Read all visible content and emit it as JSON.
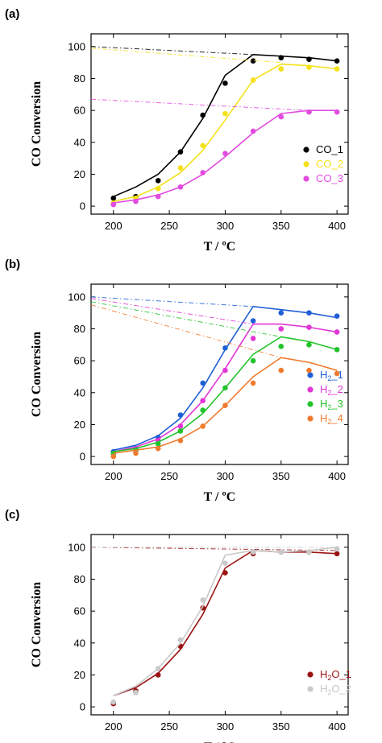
{
  "chart_data": [
    {
      "type": "line",
      "panel_label": "(a)",
      "xlabel": "T / ºC",
      "ylabel": "CO Conversion",
      "xlim": [
        180,
        410
      ],
      "ylim": [
        -5,
        108
      ],
      "xticks": [
        200,
        250,
        300,
        350,
        400
      ],
      "yticks": [
        0,
        20,
        40,
        60,
        80,
        100
      ],
      "legend_position": "bottom-right",
      "series": [
        {
          "name": "CO_1",
          "label_main": "CO_1",
          "label_sub": "",
          "label_tail": "",
          "color": "#000000",
          "x": [
            200,
            220,
            240,
            260,
            280,
            300,
            325,
            350,
            375,
            400
          ],
          "points": [
            5,
            6,
            16,
            34,
            57,
            77,
            91,
            93,
            92,
            91
          ],
          "fit": [
            6,
            12,
            20,
            34,
            55,
            82,
            95,
            94,
            93,
            91
          ],
          "equilibrium": {
            "x": [
              180,
              325
            ],
            "y": [
              100,
              95
            ]
          }
        },
        {
          "name": "CO_2",
          "label_main": "CO_2",
          "label_sub": "",
          "label_tail": "",
          "color": "#f4e11a",
          "x": [
            200,
            220,
            240,
            260,
            280,
            300,
            325,
            350,
            375,
            400
          ],
          "points": [
            2,
            5,
            11,
            24,
            38,
            58,
            79,
            86,
            87,
            86
          ],
          "fit": [
            3,
            6,
            12,
            21,
            35,
            54,
            79,
            89,
            88,
            86
          ],
          "equilibrium": {
            "x": [
              180,
              350
            ],
            "y": [
              99,
              90
            ]
          }
        },
        {
          "name": "CO_3",
          "label_main": "CO_3",
          "label_sub": "",
          "label_tail": "",
          "color": "#e24ae0",
          "x": [
            200,
            220,
            240,
            260,
            280,
            300,
            325,
            350,
            375,
            400
          ],
          "points": [
            1,
            3,
            6,
            12,
            21,
            33,
            47,
            56,
            59,
            59
          ],
          "fit": [
            2,
            4,
            7,
            12,
            20,
            31,
            46,
            58,
            60,
            60
          ],
          "equilibrium": {
            "x": [
              180,
              375
            ],
            "y": [
              67,
              60
            ]
          }
        }
      ]
    },
    {
      "type": "line",
      "panel_label": "(b)",
      "xlabel": "T / ºC",
      "ylabel": "CO Conversion",
      "xlim": [
        180,
        410
      ],
      "ylim": [
        -5,
        108
      ],
      "xticks": [
        200,
        250,
        300,
        350,
        400
      ],
      "yticks": [
        0,
        20,
        40,
        60,
        80,
        100
      ],
      "legend_position": "right",
      "series": [
        {
          "name": "H2_1",
          "label_main": "H",
          "label_sub": "2",
          "label_tail": "_1",
          "color": "#1f5fd6",
          "x": [
            200,
            220,
            240,
            260,
            280,
            300,
            325,
            350,
            375,
            400
          ],
          "points": [
            3,
            5,
            12,
            26,
            46,
            68,
            85,
            90,
            90,
            88
          ],
          "fit": [
            4,
            7,
            13,
            24,
            43,
            67,
            94,
            92,
            90,
            87
          ],
          "equilibrium": {
            "x": [
              180,
              325
            ],
            "y": [
              100,
              94
            ]
          }
        },
        {
          "name": "H2_2",
          "label_main": "H",
          "label_sub": "2",
          "label_tail": "_2",
          "color": "#e236d6",
          "x": [
            200,
            220,
            240,
            260,
            280,
            300,
            325,
            350,
            375,
            400
          ],
          "points": [
            2,
            4,
            10,
            19,
            35,
            54,
            74,
            80,
            81,
            78
          ],
          "fit": [
            3,
            6,
            11,
            20,
            35,
            55,
            83,
            83,
            81,
            78
          ],
          "equilibrium": {
            "x": [
              180,
              325
            ],
            "y": [
              99,
              83
            ]
          }
        },
        {
          "name": "H2_3",
          "label_main": "H",
          "label_sub": "2",
          "label_tail": "_3",
          "color": "#22c32a",
          "x": [
            200,
            220,
            240,
            260,
            280,
            300,
            325,
            350,
            375,
            400
          ],
          "points": [
            2,
            4,
            8,
            16,
            29,
            43,
            60,
            69,
            70,
            67
          ],
          "fit": [
            3,
            5,
            9,
            16,
            27,
            43,
            64,
            75,
            72,
            67
          ],
          "equilibrium": {
            "x": [
              180,
              350
            ],
            "y": [
              97,
              75
            ]
          }
        },
        {
          "name": "H2_4",
          "label_main": "H",
          "label_sub": "2",
          "label_tail": "_4",
          "color": "#f07b2e",
          "x": [
            200,
            220,
            240,
            260,
            280,
            300,
            325,
            350,
            375,
            400
          ],
          "points": [
            0,
            2,
            5,
            10,
            19,
            32,
            46,
            54,
            54,
            52
          ],
          "fit": [
            2,
            4,
            6,
            11,
            19,
            32,
            50,
            62,
            59,
            54
          ],
          "equilibrium": {
            "x": [
              180,
              350
            ],
            "y": [
              95,
              62
            ]
          }
        }
      ]
    },
    {
      "type": "line",
      "panel_label": "(c)",
      "xlabel": "T / ºC",
      "ylabel": "CO Conversion",
      "xlim": [
        180,
        410
      ],
      "ylim": [
        -5,
        108
      ],
      "xticks": [
        200,
        250,
        300,
        350,
        400
      ],
      "yticks": [
        0,
        20,
        40,
        60,
        80,
        100
      ],
      "legend_position": "bottom-right",
      "series": [
        {
          "name": "H2O_1",
          "label_main": "H",
          "label_sub": "2",
          "label_tail": "O_1",
          "color": "#9b1414",
          "x": [
            200,
            220,
            240,
            260,
            280,
            300,
            325,
            350,
            375,
            400
          ],
          "points": [
            2,
            10,
            20,
            38,
            62,
            84,
            96,
            97,
            97,
            96
          ],
          "fit": [
            7,
            12,
            21,
            36,
            58,
            87,
            98,
            97,
            97,
            96
          ],
          "equilibrium": {
            "x": [
              180,
              400
            ],
            "y": [
              100,
              98
            ]
          }
        },
        {
          "name": "H2O_2",
          "label_main": "H",
          "label_sub": "2",
          "label_tail": "O_2",
          "color": "#c9c9c9",
          "x": [
            200,
            220,
            240,
            260,
            280,
            300,
            325,
            350,
            375,
            400
          ],
          "points": [
            3,
            9,
            24,
            42,
            67,
            90,
            97,
            97,
            97,
            99
          ],
          "fit": [
            7,
            13,
            24,
            40,
            63,
            95,
            98,
            97,
            98,
            100
          ],
          "equilibrium": {
            "x": [
              180,
              400
            ],
            "y": [
              100,
              100
            ]
          }
        }
      ]
    }
  ]
}
